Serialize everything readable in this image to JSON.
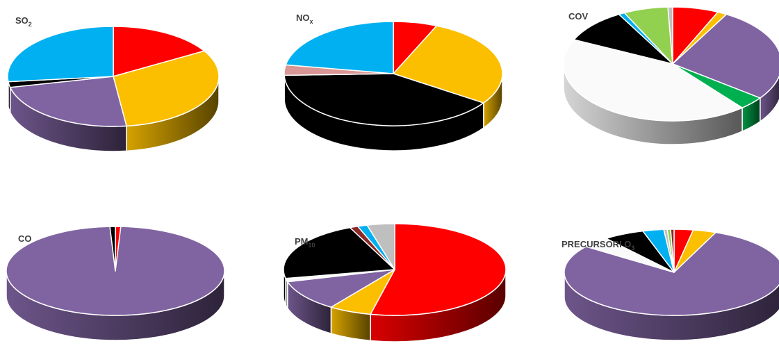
{
  "colors": {
    "red": "#ff0000",
    "yellow": "#fbbf00",
    "purple": "#8064a2",
    "black": "#000000",
    "blue": "#00b0f0",
    "pink": "#d99694",
    "green": "#00b050",
    "lightgreen": "#92d050",
    "white": "#fafafa",
    "darkred": "#8b2a2a",
    "gray": "#bfbfbf"
  },
  "chart_data": [
    {
      "type": "pie",
      "title": "SO",
      "title_sub": "2",
      "slices": [
        {
          "color": "red",
          "value": 16.5
        },
        {
          "color": "yellow",
          "value": 31.5
        },
        {
          "color": "purple",
          "value": 23.5
        },
        {
          "color": "black",
          "value": 1.8
        },
        {
          "color": "blue",
          "value": 26.7
        }
      ]
    },
    {
      "type": "pie",
      "title": "NO",
      "title_sub": "x",
      "slices": [
        {
          "color": "red",
          "value": 6.5
        },
        {
          "color": "yellow",
          "value": 28
        },
        {
          "color": "black",
          "value": 40
        },
        {
          "color": "pink",
          "value": 3.2
        },
        {
          "color": "blue",
          "value": 22.3
        }
      ]
    },
    {
      "type": "pie",
      "title": "COV",
      "title_sub": "",
      "slices": [
        {
          "color": "red",
          "value": 6.8
        },
        {
          "color": "yellow",
          "value": 1.4
        },
        {
          "color": "purple",
          "value": 27
        },
        {
          "color": "green",
          "value": 3.8
        },
        {
          "color": "white",
          "value": 43
        },
        {
          "color": "black",
          "value": 9.8
        },
        {
          "color": "blue",
          "value": 0.9
        },
        {
          "color": "lightgreen",
          "value": 6.6
        },
        {
          "color": "gray",
          "value": 0.7
        }
      ]
    },
    {
      "type": "pie",
      "title": "CO",
      "title_sub": "",
      "slices": [
        {
          "color": "red",
          "value": 0.8
        },
        {
          "color": "purple",
          "value": 98.4
        },
        {
          "color": "black",
          "value": 0.8
        }
      ]
    },
    {
      "type": "pie",
      "title": "PM",
      "title_sub": "10",
      "slices": [
        {
          "color": "red",
          "value": 53.5
        },
        {
          "color": "yellow",
          "value": 6.2
        },
        {
          "color": "purple",
          "value": 11
        },
        {
          "color": "white",
          "value": 1.2
        },
        {
          "color": "black",
          "value": 21.5
        },
        {
          "color": "darkred",
          "value": 1.2
        },
        {
          "color": "blue",
          "value": 1.4
        },
        {
          "color": "gray",
          "value": 4
        }
      ]
    },
    {
      "type": "pie",
      "title": "PRECURSORI O",
      "title_sub": "3",
      "slices": [
        {
          "color": "red",
          "value": 2.8
        },
        {
          "color": "yellow",
          "value": 3.4
        },
        {
          "color": "purple",
          "value": 79
        },
        {
          "color": "white",
          "value": 4.2
        },
        {
          "color": "black",
          "value": 6
        },
        {
          "color": "blue",
          "value": 3.1
        },
        {
          "color": "gray",
          "value": 0.5
        },
        {
          "color": "lightgreen",
          "value": 0.5
        },
        {
          "color": "darkred",
          "value": 0.5
        }
      ]
    }
  ]
}
